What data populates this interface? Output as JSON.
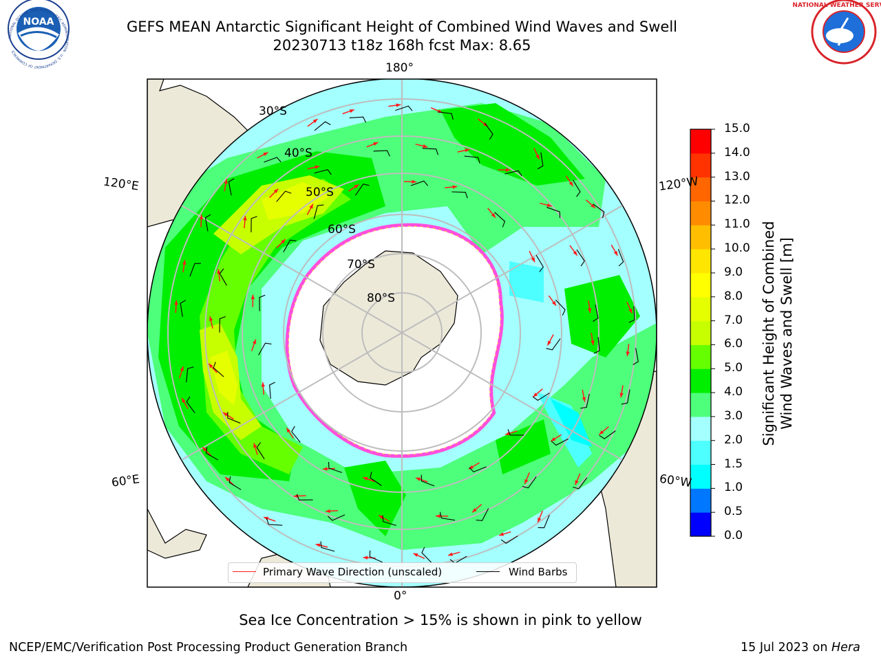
{
  "header": {
    "title_line1": "GEFS MEAN Antarctic Significant Height of Combined Wind Waves and Swell",
    "title_line2": "20230713 t18z 168h fcst   Max: 8.65"
  },
  "logos": {
    "left_text": "NOAA",
    "left_ring": "NATIONAL OCEANIC AND ATMOSPHERIC ADMINISTRATION · U.S. DEPARTMENT OF COMMERCE",
    "right_ring": "NATIONAL WEATHER SERVICE"
  },
  "map": {
    "longitude_labels": {
      "top": "180°",
      "bottom": "0°",
      "upper_left": "120°E",
      "lower_left": "60°E",
      "upper_right": "120°W",
      "lower_right": "60°W"
    },
    "latitude_labels": [
      "30°S",
      "40°S",
      "50°S",
      "60°S",
      "70°S",
      "80°S"
    ],
    "colors": {
      "land": "#ede9d9",
      "ice": "#ffffff",
      "ice_edge_pink": "#ff4fdc",
      "ice_edge_yellow": "#ffd93a",
      "grid": "#bdbdbd",
      "wave_arrow": "#ff1a1a",
      "wind_barb": "#000000"
    }
  },
  "legend": {
    "wave_label": "Primary Wave Direction (unscaled)",
    "barb_label": "Wind Barbs"
  },
  "colorbar": {
    "title_line1": "Significant Height of Combined",
    "title_line2": "Wind Waves and Swell [m]",
    "ticks": [
      "15.0",
      "14.0",
      "13.0",
      "12.0",
      "11.0",
      "10.0",
      "9.0",
      "8.0",
      "7.0",
      "6.0",
      "5.0",
      "4.0",
      "3.0",
      "2.0",
      "1.5",
      "1.0",
      "0.5",
      "0.0"
    ],
    "colors": [
      "#0000ff",
      "#0077ff",
      "#00ffff",
      "#4dffff",
      "#a4ffff",
      "#4dff7a",
      "#00ee00",
      "#66ff00",
      "#c7ff00",
      "#e6ff00",
      "#ffff00",
      "#ffe600",
      "#ffbf00",
      "#ff8c00",
      "#ff6600",
      "#ff3300",
      "#ff0000"
    ]
  },
  "notes": {
    "sea_ice": "Sea Ice Concentration > 15% is shown in pink to yellow"
  },
  "footer": {
    "left": "NCEP/EMC/Verification Post Processing Product Generation Branch",
    "right_date": "15 Jul 2023 on",
    "right_host": "Hera"
  }
}
